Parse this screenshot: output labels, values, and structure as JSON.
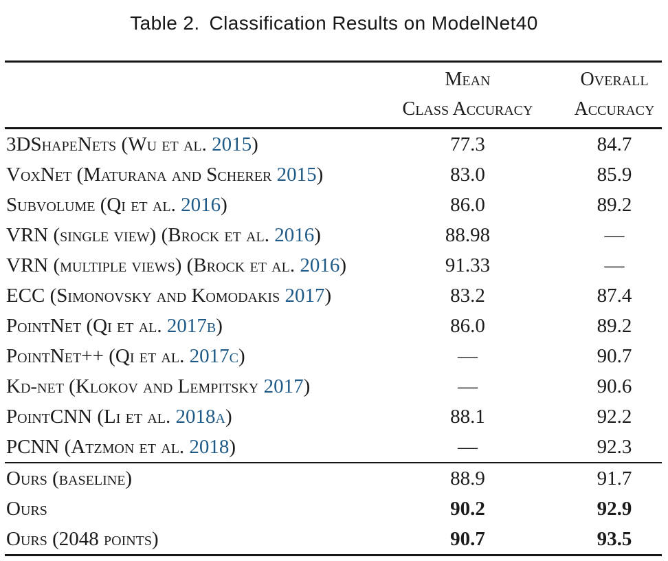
{
  "caption": {
    "label": "Table 2.",
    "text": "Classification Results on ModelNet40"
  },
  "header": {
    "mean_line1": "Mean",
    "mean_line2": "Class Accuracy",
    "overall_line1": "Overall",
    "overall_line2": "Accuracy"
  },
  "colors": {
    "citation_link": "#1e5a87",
    "text": "#1b1b1b",
    "rule": "#151515"
  },
  "rows": [
    {
      "pre": "3DShapeNets (Wu et al. ",
      "cite": "2015",
      "post": ")",
      "mean": "77.3",
      "overall": "84.7"
    },
    {
      "pre": "VoxNet (Maturana and Scherer ",
      "cite": "2015",
      "post": ")",
      "mean": "83.0",
      "overall": "85.9"
    },
    {
      "pre": "Subvolume (Qi et al. ",
      "cite": "2016",
      "post": ")",
      "mean": "86.0",
      "overall": "89.2"
    },
    {
      "pre": "VRN (single view) (Brock et al. ",
      "cite": "2016",
      "post": ")",
      "mean": "88.98",
      "overall": "—"
    },
    {
      "pre": "VRN (multiple views) (Brock et al. ",
      "cite": "2016",
      "post": ")",
      "mean": "91.33",
      "overall": "—"
    },
    {
      "pre": "ECC (Simonovsky and Komodakis ",
      "cite": "2017",
      "post": ")",
      "mean": "83.2",
      "overall": "87.4"
    },
    {
      "pre": "PointNet (Qi et al. ",
      "cite": "2017b",
      "post": ")",
      "mean": "86.0",
      "overall": "89.2"
    },
    {
      "pre": "PointNet++ (Qi et al. ",
      "cite": "2017c",
      "post": ")",
      "mean": "—",
      "overall": "90.7"
    },
    {
      "pre": "Kd-net (Klokov and Lempitsky ",
      "cite": "2017",
      "post": ")",
      "mean": "—",
      "overall": "90.6"
    },
    {
      "pre": "PointCNN (Li et al. ",
      "cite": "2018a",
      "post": ")",
      "mean": "88.1",
      "overall": "92.2"
    },
    {
      "pre": "PCNN (Atzmon et al. ",
      "cite": "2018",
      "post": ")",
      "mean": "—",
      "overall": "92.3"
    },
    {
      "pre": "Ours (baseline)",
      "cite": "",
      "post": "",
      "mean": "88.9",
      "overall": "91.7",
      "section_start": true
    },
    {
      "pre": "Ours",
      "cite": "",
      "post": "",
      "mean": "90.2",
      "overall": "92.9",
      "bold_values": true
    },
    {
      "pre": "Ours (2048 points)",
      "cite": "",
      "post": "",
      "mean": "90.7",
      "overall": "93.5",
      "bold_values": true
    }
  ]
}
